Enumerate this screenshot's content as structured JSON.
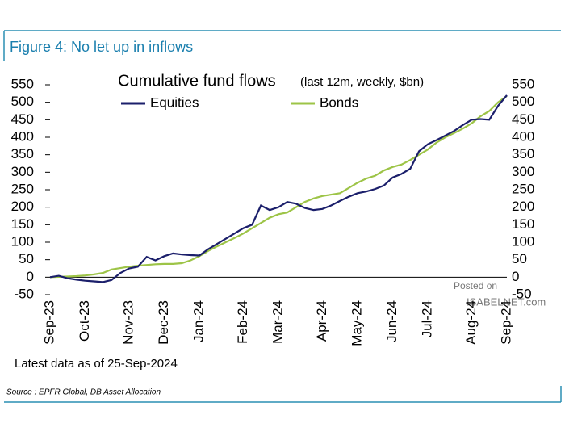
{
  "header": "Figure 4: No let up in inflows",
  "chart_data": {
    "type": "line",
    "title": "Cumulative fund flows",
    "subtitle": "(last 12m, weekly, $bn)",
    "categories": [
      "Sep-23",
      null,
      null,
      null,
      "Oct-23",
      null,
      null,
      null,
      null,
      "Nov-23",
      null,
      null,
      null,
      "Dec-23",
      null,
      null,
      null,
      "Jan-24",
      null,
      null,
      null,
      null,
      "Feb-24",
      null,
      null,
      null,
      "Mar-24",
      null,
      null,
      null,
      null,
      "Apr-24",
      null,
      null,
      null,
      "May-24",
      null,
      null,
      null,
      "Jun-24",
      null,
      null,
      null,
      "Jul-24",
      null,
      null,
      null,
      null,
      "Aug-24",
      null,
      null,
      null,
      "Sep-24"
    ],
    "series": [
      {
        "name": "Equities",
        "color": "#1b1f6b",
        "values": [
          0,
          4,
          -3,
          -7,
          -10,
          -12,
          -14,
          -8,
          12,
          25,
          30,
          58,
          48,
          60,
          68,
          65,
          63,
          62,
          80,
          95,
          110,
          125,
          140,
          150,
          205,
          192,
          200,
          215,
          210,
          198,
          192,
          195,
          205,
          218,
          230,
          240,
          245,
          252,
          262,
          285,
          295,
          310,
          360,
          380,
          392,
          405,
          418,
          435,
          450,
          452,
          450,
          490,
          520
        ]
      },
      {
        "name": "Bonds",
        "color": "#9dc447",
        "values": [
          0,
          1,
          2,
          3,
          5,
          8,
          12,
          22,
          26,
          30,
          33,
          35,
          37,
          38,
          38,
          40,
          48,
          60,
          75,
          88,
          100,
          112,
          125,
          140,
          155,
          170,
          180,
          185,
          200,
          215,
          225,
          232,
          236,
          240,
          255,
          270,
          282,
          290,
          305,
          315,
          322,
          335,
          350,
          365,
          385,
          400,
          412,
          425,
          440,
          460,
          475,
          500,
          518
        ]
      }
    ],
    "ylim": [
      -50,
      550
    ],
    "yticks": [
      -50,
      0,
      50,
      100,
      150,
      200,
      250,
      300,
      350,
      400,
      450,
      500,
      550
    ],
    "y2lim": [
      -50,
      550
    ],
    "y2ticks": [
      -50,
      0,
      50,
      100,
      150,
      200,
      250,
      300,
      350,
      400,
      450,
      500,
      550
    ],
    "annotations": [
      "Latest data as of 25-Sep-2024",
      "Posted on",
      "ISABELNET.com"
    ]
  },
  "source": "Source : EPFR Global, DB Asset Allocation"
}
